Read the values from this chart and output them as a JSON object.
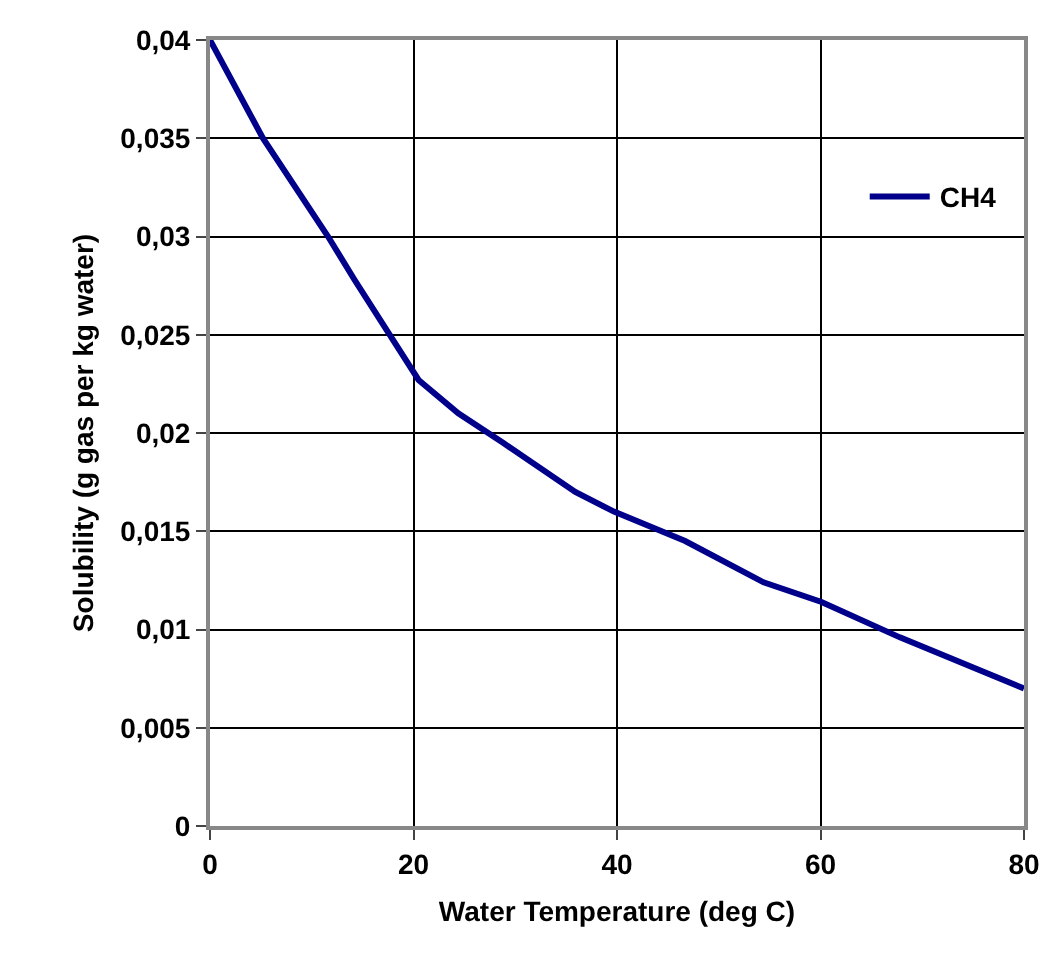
{
  "chart_data": {
    "type": "line",
    "xlabel": "Water Temperature (deg C)",
    "ylabel": "Solubility (g gas per kg water)",
    "series": [
      {
        "name": "CH4",
        "color": "#00008b",
        "x": [
          0,
          5.2,
          11.6,
          14.2,
          20.5,
          24.4,
          28.8,
          35.9,
          39.7,
          46.7,
          54.4,
          60.1,
          67.8,
          80
        ],
        "values": [
          0.04,
          0.035,
          0.03,
          0.0278,
          0.0227,
          0.021,
          0.0195,
          0.017,
          0.016,
          0.0145,
          0.0124,
          0.0114,
          0.0096,
          0.007
        ]
      }
    ],
    "xlim": [
      0,
      80
    ],
    "xticks": [
      0,
      20,
      40,
      60,
      80
    ],
    "ylim": [
      0,
      0.04
    ],
    "yticks": [
      {
        "value": 0,
        "label": "0"
      },
      {
        "value": 0.005,
        "label": "0,005"
      },
      {
        "value": 0.01,
        "label": "0,01"
      },
      {
        "value": 0.015,
        "label": "0,015"
      },
      {
        "value": 0.02,
        "label": "0,02"
      },
      {
        "value": 0.025,
        "label": "0,025"
      },
      {
        "value": 0.03,
        "label": "0,03"
      },
      {
        "value": 0.035,
        "label": "0,035"
      },
      {
        "value": 0.04,
        "label": "0,04"
      }
    ],
    "grid": true,
    "legend": "top right",
    "marker": "none",
    "line_style": "solid"
  }
}
